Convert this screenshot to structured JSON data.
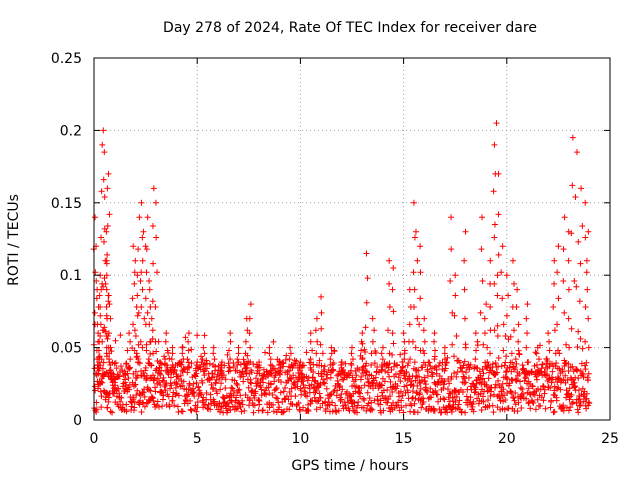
{
  "chart_data": {
    "type": "scatter",
    "title": "Day 278 of 2024, Rate Of TEC Index for receiver dare",
    "xlabel": "GPS time / hours",
    "ylabel": "ROTI / TECUs",
    "xlim": [
      0,
      25
    ],
    "ylim": [
      0,
      0.25
    ],
    "xticks": [
      0,
      5,
      10,
      15,
      20,
      25
    ],
    "xtick_labels": [
      "0",
      "5",
      "10",
      "15",
      "20",
      "25"
    ],
    "yticks": [
      0,
      0.05,
      0.1,
      0.15,
      0.2,
      0.25
    ],
    "ytick_labels": [
      "0",
      "0.05",
      "0.1",
      "0.15",
      "0.2",
      "0.25"
    ],
    "grid": true,
    "marker": "+",
    "series": [
      {
        "name": "ROTI",
        "color": "#ff0000",
        "x": [
          0.05,
          0.1,
          0.15,
          0.2,
          0.25,
          0.3,
          0.35,
          0.4,
          0.45,
          0.5,
          0.55,
          0.6,
          0.62,
          0.65,
          0.7,
          0.75,
          0.8,
          0.85,
          0.9,
          1.0,
          1.2,
          1.5,
          1.7,
          1.9,
          2.0,
          2.1,
          2.2,
          2.3,
          2.4,
          2.5,
          2.6,
          2.7,
          2.8,
          2.9,
          3.0,
          3.2,
          3.5,
          3.8,
          4.0,
          4.3,
          4.6,
          5.0,
          5.3,
          5.8,
          6.2,
          6.6,
          7.0,
          7.4,
          7.6,
          8.0,
          8.5,
          9.0,
          9.5,
          10.0,
          10.5,
          10.8,
          11.0,
          11.5,
          12.0,
          12.5,
          13.0,
          13.2,
          13.5,
          14.0,
          14.3,
          14.5,
          15.0,
          15.3,
          15.5,
          15.6,
          15.8,
          16.0,
          16.5,
          17.0,
          17.3,
          17.5,
          18.0,
          18.5,
          18.8,
          19.0,
          19.2,
          19.4,
          19.5,
          19.6,
          19.8,
          20.0,
          20.3,
          20.5,
          21.0,
          21.5,
          22.0,
          22.3,
          22.5,
          22.8,
          23.0,
          23.2,
          23.4,
          23.6,
          23.8,
          23.95
        ],
        "y": [
          0.14,
          0.12,
          0.09,
          0.06,
          0.04,
          0.1,
          0.09,
          0.19,
          0.2,
          0.185,
          0.11,
          0.13,
          0.1,
          0.16,
          0.17,
          0.08,
          0.05,
          0.03,
          0.02,
          0.02,
          0.03,
          0.02,
          0.06,
          0.12,
          0.11,
          0.1,
          0.14,
          0.15,
          0.13,
          0.12,
          0.14,
          0.09,
          0.07,
          0.16,
          0.15,
          0.04,
          0.06,
          0.05,
          0.03,
          0.05,
          0.06,
          0.04,
          0.05,
          0.05,
          0.04,
          0.06,
          0.05,
          0.07,
          0.08,
          0.04,
          0.05,
          0.04,
          0.05,
          0.04,
          0.06,
          0.07,
          0.085,
          0.05,
          0.04,
          0.05,
          0.06,
          0.115,
          0.07,
          0.05,
          0.11,
          0.105,
          0.06,
          0.09,
          0.15,
          0.13,
          0.12,
          0.07,
          0.06,
          0.05,
          0.14,
          0.1,
          0.13,
          0.06,
          0.14,
          0.08,
          0.11,
          0.19,
          0.205,
          0.17,
          0.12,
          0.1,
          0.11,
          0.09,
          0.08,
          0.05,
          0.06,
          0.11,
          0.12,
          0.14,
          0.13,
          0.195,
          0.185,
          0.16,
          0.15,
          0.13
        ]
      }
    ],
    "dense_band": {
      "x_range": [
        0,
        24
      ],
      "typical_y_range": [
        0.005,
        0.04
      ]
    }
  }
}
